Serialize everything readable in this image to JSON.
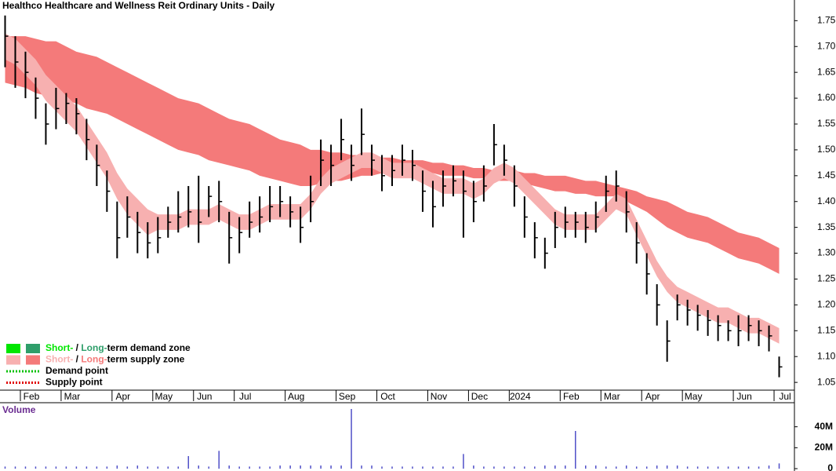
{
  "chart_data": {
    "type": "ohlc",
    "title": "Healthco Healthcare and Wellness Reit Ordinary Units - Daily",
    "categories": [
      null,
      null,
      "Feb",
      null,
      null,
      null,
      "Mar",
      null,
      null,
      null,
      null,
      "Apr",
      null,
      null,
      null,
      "May",
      null,
      null,
      null,
      "Jun",
      null,
      null,
      null,
      "Jul",
      null,
      null,
      null,
      null,
      "Aug",
      null,
      null,
      null,
      null,
      "Sep",
      null,
      null,
      null,
      "Oct",
      null,
      null,
      null,
      null,
      "Nov",
      null,
      null,
      null,
      "Dec",
      null,
      null,
      null,
      "2024",
      null,
      null,
      null,
      null,
      "Feb",
      null,
      null,
      null,
      "Mar",
      null,
      null,
      null,
      "Apr",
      null,
      null,
      null,
      "May",
      null,
      null,
      null,
      null,
      "Jun",
      null,
      null,
      null,
      "Jul"
    ],
    "high": [
      1.76,
      1.72,
      1.69,
      1.64,
      1.59,
      1.62,
      1.61,
      1.6,
      1.56,
      1.51,
      1.46,
      1.4,
      1.41,
      1.38,
      1.36,
      1.37,
      1.39,
      1.42,
      1.43,
      1.45,
      1.43,
      1.44,
      1.38,
      1.37,
      1.4,
      1.41,
      1.43,
      1.43,
      1.41,
      1.39,
      1.45,
      1.52,
      1.51,
      1.56,
      1.51,
      1.58,
      1.51,
      1.49,
      1.49,
      1.51,
      1.5,
      1.46,
      1.44,
      1.46,
      1.47,
      1.46,
      1.44,
      1.47,
      1.55,
      1.51,
      1.47,
      1.41,
      1.36,
      1.33,
      1.38,
      1.39,
      1.38,
      1.38,
      1.4,
      1.45,
      1.46,
      1.42,
      1.36,
      1.3,
      1.24,
      1.17,
      1.22,
      1.21,
      1.2,
      1.19,
      1.18,
      1.17,
      1.18,
      1.18,
      1.17,
      1.16,
      1.1
    ],
    "low": [
      1.66,
      1.62,
      1.6,
      1.56,
      1.51,
      1.54,
      1.55,
      1.53,
      1.48,
      1.43,
      1.38,
      1.29,
      1.33,
      1.3,
      1.29,
      1.3,
      1.33,
      1.34,
      1.35,
      1.32,
      1.37,
      1.36,
      1.28,
      1.3,
      1.33,
      1.34,
      1.36,
      1.37,
      1.35,
      1.32,
      1.36,
      1.43,
      1.43,
      1.48,
      1.44,
      1.49,
      1.45,
      1.42,
      1.43,
      1.45,
      1.44,
      1.38,
      1.35,
      1.39,
      1.41,
      1.33,
      1.36,
      1.4,
      1.47,
      1.45,
      1.39,
      1.33,
      1.29,
      1.27,
      1.31,
      1.33,
      1.33,
      1.32,
      1.34,
      1.38,
      1.4,
      1.34,
      1.28,
      1.22,
      1.16,
      1.09,
      1.17,
      1.16,
      1.15,
      1.14,
      1.13,
      1.13,
      1.12,
      1.13,
      1.12,
      1.11,
      1.06
    ],
    "close": [
      1.72,
      1.67,
      1.65,
      1.6,
      1.55,
      1.58,
      1.59,
      1.57,
      1.52,
      1.47,
      1.42,
      1.33,
      1.37,
      1.34,
      1.32,
      1.33,
      1.36,
      1.37,
      1.38,
      1.36,
      1.41,
      1.4,
      1.33,
      1.34,
      1.36,
      1.37,
      1.39,
      1.4,
      1.38,
      1.35,
      1.4,
      1.48,
      1.47,
      1.52,
      1.47,
      1.53,
      1.48,
      1.45,
      1.46,
      1.48,
      1.47,
      1.42,
      1.39,
      1.43,
      1.44,
      1.42,
      1.4,
      1.43,
      1.51,
      1.48,
      1.43,
      1.37,
      1.33,
      1.3,
      1.35,
      1.36,
      1.36,
      1.35,
      1.37,
      1.42,
      1.43,
      1.38,
      1.32,
      1.26,
      1.2,
      1.13,
      1.2,
      1.19,
      1.18,
      1.17,
      1.16,
      1.15,
      1.15,
      1.16,
      1.15,
      1.14,
      1.08
    ],
    "price_color": "#000000",
    "bands": [
      {
        "color": "#f47a7a",
        "upper": [
          1.72,
          1.72,
          1.72,
          1.715,
          1.71,
          1.71,
          1.7,
          1.69,
          1.685,
          1.68,
          1.67,
          1.66,
          1.65,
          1.64,
          1.63,
          1.62,
          1.61,
          1.6,
          1.595,
          1.59,
          1.58,
          1.57,
          1.56,
          1.555,
          1.55,
          1.54,
          1.53,
          1.52,
          1.515,
          1.51,
          1.5,
          1.5,
          1.495,
          1.495,
          1.49,
          1.49,
          1.49,
          1.485,
          1.485,
          1.48,
          1.48,
          1.48,
          1.475,
          1.475,
          1.47,
          1.47,
          1.465,
          1.465,
          1.46,
          1.46,
          1.46,
          1.455,
          1.455,
          1.45,
          1.45,
          1.45,
          1.445,
          1.44,
          1.44,
          1.435,
          1.43,
          1.425,
          1.42,
          1.41,
          1.405,
          1.4,
          1.39,
          1.38,
          1.375,
          1.37,
          1.36,
          1.35,
          1.34,
          1.335,
          1.33,
          1.32,
          1.31
        ],
        "lower": [
          1.63,
          1.625,
          1.62,
          1.61,
          1.605,
          1.6,
          1.595,
          1.59,
          1.58,
          1.575,
          1.57,
          1.56,
          1.55,
          1.54,
          1.53,
          1.52,
          1.51,
          1.5,
          1.495,
          1.49,
          1.48,
          1.475,
          1.47,
          1.465,
          1.46,
          1.45,
          1.445,
          1.44,
          1.435,
          1.43,
          1.43,
          1.435,
          1.44,
          1.44,
          1.445,
          1.45,
          1.45,
          1.455,
          1.455,
          1.46,
          1.46,
          1.455,
          1.455,
          1.45,
          1.45,
          1.45,
          1.445,
          1.445,
          1.44,
          1.44,
          1.44,
          1.435,
          1.43,
          1.425,
          1.42,
          1.42,
          1.415,
          1.415,
          1.41,
          1.41,
          1.41,
          1.4,
          1.39,
          1.38,
          1.365,
          1.35,
          1.34,
          1.33,
          1.325,
          1.32,
          1.31,
          1.3,
          1.29,
          1.285,
          1.28,
          1.27,
          1.26
        ]
      },
      {
        "color": "#f7b0b0",
        "upper": [
          1.725,
          1.715,
          1.695,
          1.675,
          1.645,
          1.625,
          1.605,
          1.585,
          1.555,
          1.525,
          1.495,
          1.455,
          1.425,
          1.405,
          1.385,
          1.375,
          1.375,
          1.375,
          1.385,
          1.385,
          1.385,
          1.395,
          1.385,
          1.375,
          1.375,
          1.385,
          1.395,
          1.395,
          1.395,
          1.395,
          1.415,
          1.445,
          1.465,
          1.475,
          1.485,
          1.495,
          1.495,
          1.485,
          1.475,
          1.475,
          1.475,
          1.465,
          1.455,
          1.445,
          1.445,
          1.445,
          1.435,
          1.445,
          1.465,
          1.475,
          1.465,
          1.445,
          1.425,
          1.405,
          1.385,
          1.375,
          1.375,
          1.375,
          1.375,
          1.395,
          1.415,
          1.405,
          1.365,
          1.325,
          1.285,
          1.255,
          1.235,
          1.225,
          1.215,
          1.205,
          1.195,
          1.195,
          1.185,
          1.175,
          1.175,
          1.165,
          1.155
        ],
        "lower": [
          1.675,
          1.665,
          1.645,
          1.625,
          1.595,
          1.575,
          1.555,
          1.535,
          1.505,
          1.475,
          1.445,
          1.405,
          1.375,
          1.355,
          1.335,
          1.345,
          1.345,
          1.345,
          1.355,
          1.355,
          1.355,
          1.365,
          1.355,
          1.345,
          1.345,
          1.355,
          1.365,
          1.365,
          1.365,
          1.365,
          1.385,
          1.415,
          1.435,
          1.445,
          1.455,
          1.465,
          1.465,
          1.455,
          1.445,
          1.445,
          1.445,
          1.435,
          1.425,
          1.415,
          1.415,
          1.415,
          1.405,
          1.415,
          1.435,
          1.445,
          1.435,
          1.415,
          1.395,
          1.375,
          1.355,
          1.345,
          1.345,
          1.345,
          1.345,
          1.365,
          1.385,
          1.375,
          1.335,
          1.295,
          1.255,
          1.225,
          1.205,
          1.195,
          1.185,
          1.175,
          1.165,
          1.165,
          1.155,
          1.145,
          1.145,
          1.135,
          1.125
        ]
      }
    ],
    "ylim": [
      1.035,
      1.79
    ],
    "yticks": [
      1.05,
      {
        "value": 1.1,
        "label": "1.10"
      },
      1.15,
      {
        "value": 1.2,
        "label": "1.20"
      },
      1.25,
      {
        "value": 1.3,
        "label": "1.30"
      },
      1.35,
      {
        "value": 1.4,
        "label": "1.40"
      },
      1.45,
      {
        "value": 1.5,
        "label": "1.50"
      },
      1.55,
      {
        "value": 1.6,
        "label": "1.60"
      },
      1.65,
      {
        "value": 1.7,
        "label": "1.70"
      },
      1.75
    ],
    "legend": [
      {
        "parts": [
          "Short-",
          " / ",
          "Long-",
          "term demand zone"
        ],
        "colors": [
          "#00e600",
          "#000000",
          "#2e9e6a",
          "#000000"
        ],
        "swatches": [
          "#00e600",
          "#2e9e6a"
        ]
      },
      {
        "parts": [
          "Short-",
          " / ",
          "Long-",
          "term supply zone"
        ],
        "colors": [
          "#f7b0b0",
          "#000000",
          "#f47a7a",
          "#000000"
        ],
        "swatches": [
          "#f7b0b0",
          "#f47a7a"
        ]
      },
      {
        "parts": [
          "Demand point"
        ],
        "colors": [
          "#000000"
        ],
        "dots": "#00c000"
      },
      {
        "parts": [
          "Supply point"
        ],
        "colors": [
          "#000000"
        ],
        "dots": "#e00000"
      }
    ],
    "volume": {
      "title": "Volume",
      "color": "#5050c8",
      "values": [
        2,
        2,
        2,
        2,
        2,
        2,
        2,
        2,
        2,
        2,
        2,
        3,
        2,
        3,
        2,
        2,
        2,
        2,
        12,
        3,
        2,
        17,
        3,
        2,
        2,
        2,
        2,
        3,
        3,
        3,
        3,
        3,
        3,
        3,
        57,
        3,
        3,
        2,
        2,
        2,
        2,
        2,
        2,
        2,
        2,
        14,
        3,
        2,
        2,
        2,
        2,
        2,
        2,
        3,
        3,
        3,
        36,
        3,
        3,
        2,
        2,
        3,
        2,
        2,
        3,
        3,
        3,
        2,
        2,
        2,
        2,
        2,
        2,
        2,
        2,
        3,
        5
      ],
      "ylim": [
        0,
        63
      ],
      "yticks": [
        0,
        {
          "value": 20,
          "label": "20M"
        },
        {
          "value": 40,
          "label": "40M"
        }
      ]
    }
  }
}
